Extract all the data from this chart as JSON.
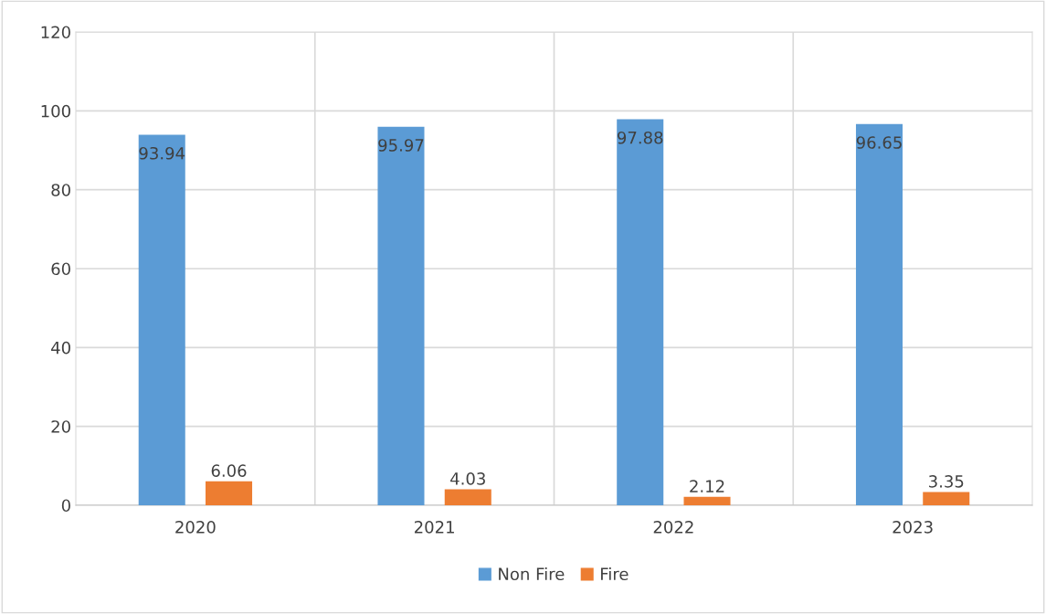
{
  "chart_data": {
    "type": "bar",
    "categories": [
      "2020",
      "2021",
      "2022",
      "2023"
    ],
    "series": [
      {
        "name": "Non Fire",
        "color": "#5b9bd5",
        "values": [
          93.94,
          95.97,
          97.88,
          96.65
        ]
      },
      {
        "name": "Fire",
        "color": "#ed7d31",
        "values": [
          6.06,
          4.03,
          2.12,
          3.35
        ]
      }
    ],
    "ylim": [
      0,
      120
    ],
    "yticks": [
      0,
      20,
      40,
      60,
      80,
      100,
      120
    ],
    "grid": true,
    "legend": "bottom",
    "data_labels": true
  }
}
